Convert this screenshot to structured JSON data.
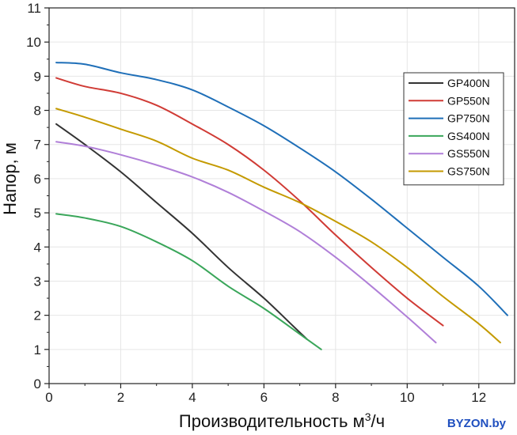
{
  "chart_data": {
    "type": "line",
    "xlabel": "Производительность м³/ч",
    "ylabel": "Напор, м",
    "xlim": [
      0,
      13
    ],
    "ylim": [
      0,
      11
    ],
    "xticks": [
      0,
      2,
      4,
      6,
      8,
      10,
      12
    ],
    "yticks": [
      0,
      1,
      2,
      3,
      4,
      5,
      6,
      7,
      8,
      9,
      10,
      11
    ],
    "grid": true,
    "legend_position": "top-right",
    "series": [
      {
        "name": "GP400N",
        "color": "#333333",
        "x": [
          0.2,
          1.0,
          2.0,
          3.0,
          4.0,
          5.0,
          6.0,
          6.8,
          7.2
        ],
        "y": [
          7.6,
          7.0,
          6.2,
          5.3,
          4.4,
          3.4,
          2.5,
          1.7,
          1.3
        ]
      },
      {
        "name": "GP550N",
        "color": "#d03b35",
        "x": [
          0.2,
          1.0,
          2.0,
          3.0,
          4.0,
          5.0,
          6.0,
          7.0,
          8.0,
          9.0,
          10.0,
          11.0
        ],
        "y": [
          8.95,
          8.7,
          8.5,
          8.15,
          7.6,
          7.0,
          6.25,
          5.35,
          4.35,
          3.4,
          2.5,
          1.7
        ]
      },
      {
        "name": "GP750N",
        "color": "#1f6fb8",
        "x": [
          0.2,
          1.0,
          2.0,
          3.0,
          4.0,
          5.0,
          6.0,
          7.0,
          8.0,
          9.0,
          10.0,
          11.0,
          12.0,
          12.8
        ],
        "y": [
          9.4,
          9.35,
          9.1,
          8.9,
          8.6,
          8.1,
          7.55,
          6.9,
          6.2,
          5.4,
          4.55,
          3.7,
          2.85,
          2.0
        ]
      },
      {
        "name": "GS400N",
        "color": "#3aa65a",
        "x": [
          0.2,
          1.0,
          2.0,
          3.0,
          4.0,
          5.0,
          6.0,
          7.0,
          7.6
        ],
        "y": [
          4.97,
          4.85,
          4.6,
          4.15,
          3.6,
          2.85,
          2.2,
          1.45,
          1.0
        ]
      },
      {
        "name": "GS550N",
        "color": "#b07fd8",
        "x": [
          0.2,
          1.0,
          2.0,
          3.0,
          4.0,
          5.0,
          6.0,
          7.0,
          8.0,
          9.0,
          10.0,
          10.8
        ],
        "y": [
          7.08,
          6.95,
          6.7,
          6.4,
          6.05,
          5.6,
          5.05,
          4.45,
          3.7,
          2.85,
          1.95,
          1.2
        ]
      },
      {
        "name": "GS750N",
        "color": "#c49a00",
        "x": [
          0.2,
          1.0,
          2.0,
          3.0,
          4.0,
          5.0,
          6.0,
          7.0,
          8.0,
          9.0,
          10.0,
          11.0,
          12.0,
          12.6
        ],
        "y": [
          8.05,
          7.8,
          7.45,
          7.1,
          6.6,
          6.25,
          5.75,
          5.3,
          4.75,
          4.15,
          3.4,
          2.55,
          1.75,
          1.2
        ]
      }
    ]
  },
  "watermark": "BYZON.by"
}
